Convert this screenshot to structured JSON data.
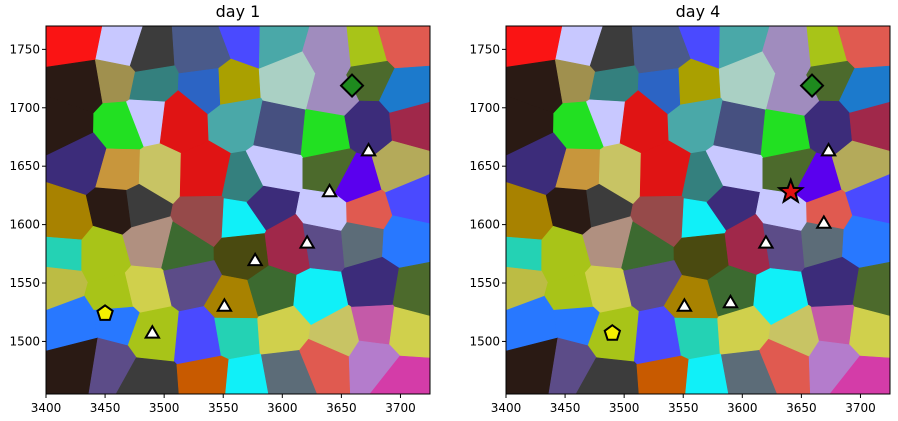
{
  "chart_data": [
    {
      "type": "segmentation-map",
      "title": "day 1",
      "xlim": [
        3400,
        3725
      ],
      "ylim": [
        1455,
        1770
      ],
      "xticks": [
        3400,
        3450,
        3500,
        3550,
        3600,
        3650,
        3700
      ],
      "yticks": [
        1500,
        1550,
        1600,
        1650,
        1700,
        1750
      ],
      "markers": [
        {
          "shape": "diamond",
          "color": "#1e8a1e",
          "x": 3659,
          "y": 1719
        },
        {
          "shape": "triangle",
          "color": "#ffffff",
          "x": 3673,
          "y": 1663
        },
        {
          "shape": "triangle",
          "color": "#ffffff",
          "x": 3640,
          "y": 1628
        },
        {
          "shape": "triangle",
          "color": "#ffffff",
          "x": 3621,
          "y": 1584
        },
        {
          "shape": "triangle",
          "color": "#ffffff",
          "x": 3577,
          "y": 1569
        },
        {
          "shape": "triangle",
          "color": "#ffffff",
          "x": 3551,
          "y": 1530
        },
        {
          "shape": "triangle",
          "color": "#ffffff",
          "x": 3490,
          "y": 1507
        },
        {
          "shape": "pentagon",
          "color": "#f5f000",
          "x": 3450,
          "y": 1524
        }
      ]
    },
    {
      "type": "segmentation-map",
      "title": "day 4",
      "xlim": [
        3400,
        3725
      ],
      "ylim": [
        1455,
        1770
      ],
      "xticks": [
        3400,
        3450,
        3500,
        3550,
        3600,
        3650,
        3700
      ],
      "yticks": [
        1500,
        1550,
        1600,
        1650,
        1700,
        1750
      ],
      "markers": [
        {
          "shape": "diamond",
          "color": "#1e8a1e",
          "x": 3659,
          "y": 1719
        },
        {
          "shape": "triangle",
          "color": "#ffffff",
          "x": 3673,
          "y": 1663
        },
        {
          "shape": "star",
          "color": "#e01010",
          "x": 3641,
          "y": 1628
        },
        {
          "shape": "triangle",
          "color": "#ffffff",
          "x": 3669,
          "y": 1601
        },
        {
          "shape": "triangle",
          "color": "#ffffff",
          "x": 3620,
          "y": 1584
        },
        {
          "shape": "triangle",
          "color": "#ffffff",
          "x": 3590,
          "y": 1533
        },
        {
          "shape": "triangle",
          "color": "#ffffff",
          "x": 3551,
          "y": 1530
        },
        {
          "shape": "pentagon",
          "color": "#f5f000",
          "x": 3490,
          "y": 1507
        }
      ]
    }
  ],
  "palette": [
    "#c8963c",
    "#22e022",
    "#c45aa8",
    "#2a8c2a",
    "#5a00ee",
    "#a08cbe",
    "#2878ff",
    "#a0104a",
    "#a0904e",
    "#bc6ad0",
    "#de6b4a",
    "#a88200",
    "#1c7acc",
    "#14a044",
    "#e01414",
    "#10f0f8",
    "#b09080",
    "#4a5a8a",
    "#a8c418",
    "#9e8cc0",
    "#c8c464",
    "#2a1a14",
    "#24d2b4",
    "#c85a00",
    "#a0284a",
    "#34807e",
    "#3c2c7a",
    "#aad0c4",
    "#8a5ad4",
    "#4a4aff",
    "#c03cd0",
    "#5c6c78",
    "#fa1414",
    "#b47ccc",
    "#c8c8ff",
    "#4c6a2c",
    "#3c3c3c",
    "#d43ca8",
    "#2c64c4",
    "#bcbc44",
    "#4aa8a8",
    "#b4aa5a",
    "#4a4a10",
    "#465080",
    "#aaa000",
    "#5c4c88",
    "#e05a50",
    "#d0d04c",
    "#b44010",
    "#3c6a30",
    "#964a4a"
  ]
}
